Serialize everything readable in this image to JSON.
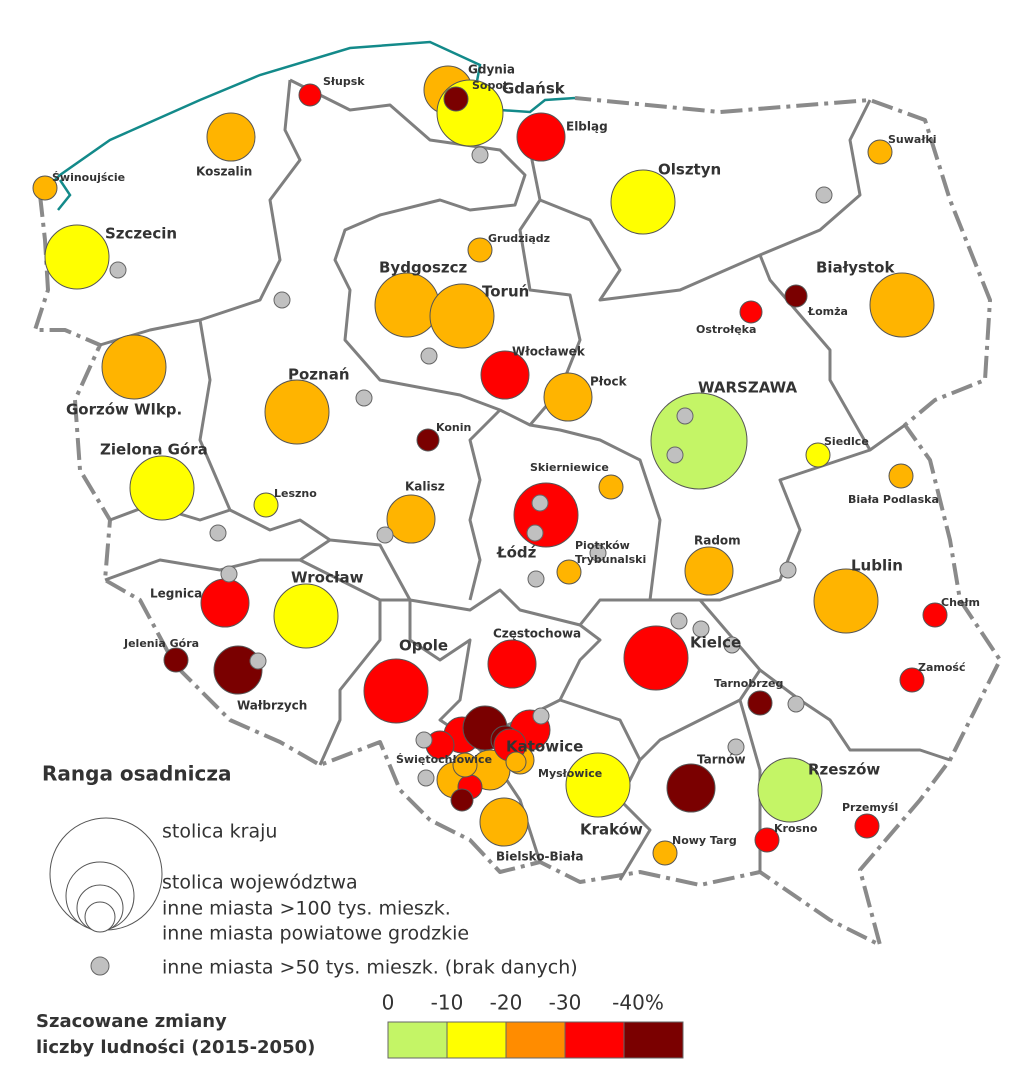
{
  "legend": {
    "title": "Ranga osadnicza",
    "items": [
      "stolica kraju",
      "stolica województwa",
      "inne miasta >100 tys. mieszk.",
      "inne miasta powiatowe grodzkie",
      "inne miasta >50 tys. mieszk. (brak danych)"
    ]
  },
  "scale": {
    "title": [
      "Szacowane zmiany",
      "liczby ludności (2015-2050)"
    ],
    "ticks": [
      0,
      -10,
      -20,
      -30,
      {
        "value": -40,
        "label": "-40%"
      }
    ],
    "colors": [
      "#c4f566",
      "#ffff00",
      "#ff8c00",
      "#ff0000",
      "#7a0000"
    ]
  },
  "cities": [
    {
      "name": "Słupsk",
      "color": "#ff0000"
    },
    {
      "name": "Gdynia",
      "color": "#ffb400"
    },
    {
      "name": "Gdańsk",
      "color": "#ffff00"
    },
    {
      "name": "Sopot",
      "color": "#7a0000"
    },
    {
      "name": "Elbląg",
      "color": "#ff0000"
    },
    {
      "name": "Koszalin",
      "color": "#ffb400"
    },
    {
      "name": "Świnoujście",
      "color": "#ffb400"
    },
    {
      "name": "Szczecin",
      "color": "#ffff00"
    },
    {
      "name": "Olsztyn",
      "color": "#ffff00"
    },
    {
      "name": "Suwałki",
      "color": "#ffb400"
    },
    {
      "name": "Grudziądz",
      "color": "#ffb400"
    },
    {
      "name": "Bydgoszcz",
      "color": "#ffb400"
    },
    {
      "name": "Toruń",
      "color": "#ffb400"
    },
    {
      "name": "Białystok",
      "color": "#ffb400"
    },
    {
      "name": "Łomża",
      "color": "#7a0000"
    },
    {
      "name": "Ostrołęka",
      "color": "#ff0000"
    },
    {
      "name": "Gorzów Wlkp.",
      "color": "#ffb400"
    },
    {
      "name": "Włocławek",
      "color": "#ff0000"
    },
    {
      "name": "Płock",
      "color": "#ffb400"
    },
    {
      "name": "Poznań",
      "color": "#ffb400"
    },
    {
      "name": "WARSZAWA",
      "color": "#c4f566"
    },
    {
      "name": "Konin",
      "color": "#7a0000"
    },
    {
      "name": "Siedlce",
      "color": "#ffff00"
    },
    {
      "name": "Zielona Góra",
      "color": "#ffff00"
    },
    {
      "name": "Biała Podlaska",
      "color": "#ffb400"
    },
    {
      "name": "Skierniewice",
      "color": "#ffb400"
    },
    {
      "name": "Leszno",
      "color": "#ffff00"
    },
    {
      "name": "Kalisz",
      "color": "#ffb400"
    },
    {
      "name": "Łódź",
      "color": "#ff0000"
    },
    {
      "name": [
        "Piotrków",
        "Trybunalski"
      ],
      "color": "#ffb400"
    },
    {
      "name": "Radom",
      "color": "#ffb400"
    },
    {
      "name": "Lublin",
      "color": "#ffb400"
    },
    {
      "name": "Legnica",
      "color": "#ff0000"
    },
    {
      "name": "Wrocław",
      "color": "#ffff00"
    },
    {
      "name": "Chełm",
      "color": "#ff0000"
    },
    {
      "name": "Jelenia Góra",
      "color": "#7a0000"
    },
    {
      "name": "Wałbrzych",
      "color": "#7a0000"
    },
    {
      "name": "Opole",
      "color": "#ff0000"
    },
    {
      "name": "Częstochowa",
      "color": "#ff0000"
    },
    {
      "name": "Kielce",
      "color": "#ff0000"
    },
    {
      "name": "Zamość",
      "color": "#ff0000"
    },
    {
      "name": "Tarnobrzeg",
      "color": "#7a0000"
    },
    {
      "name": "Katowice",
      "color": "#ff0000"
    },
    {
      "name": "Świętochłowice",
      "color": "#ffb400"
    },
    {
      "name": "Mysłowice",
      "color": "#ffb400"
    },
    {
      "name": "Tarnów",
      "color": "#7a0000"
    },
    {
      "name": "Rzeszów",
      "color": "#c4f566"
    },
    {
      "name": "Kraków",
      "color": "#ffff00"
    },
    {
      "name": "Bielsko-Biała",
      "color": "#ffb400"
    },
    {
      "name": "Przemyśl",
      "color": "#ff0000"
    },
    {
      "name": "Krosno",
      "color": "#ff0000"
    },
    {
      "name": "Nowy Targ",
      "color": "#ffb400"
    }
  ]
}
